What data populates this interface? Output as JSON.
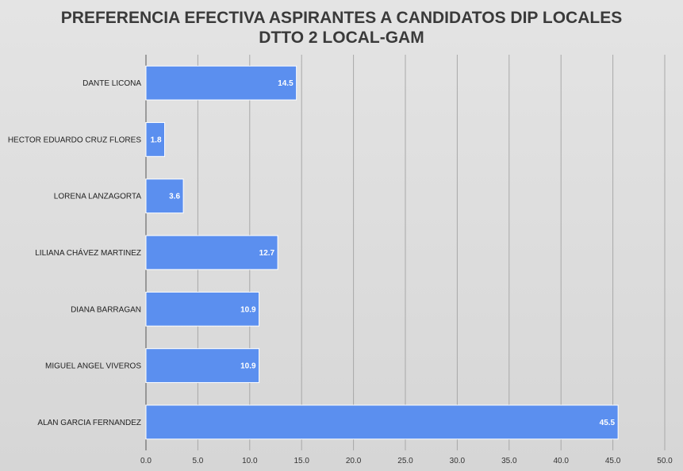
{
  "chart_data": {
    "type": "bar",
    "orientation": "horizontal",
    "title": [
      "PREFERENCIA EFECTIVA ASPIRANTES A CANDIDATOS DIP LOCALES",
      "DTTO 2 LOCAL-GAM"
    ],
    "categories": [
      "DANTE LICONA",
      "HECTOR EDUARDO CRUZ FLORES",
      "LORENA LANZAGORTA",
      "LILIANA CHÁVEZ MARTINEZ",
      "DIANA BARRAGAN",
      "MIGUEL ANGEL VIVEROS",
      "ALAN GARCIA FERNANDEZ"
    ],
    "values": [
      14.5,
      1.8,
      3.6,
      12.7,
      10.9,
      10.9,
      45.5
    ],
    "data_labels": [
      "14.5",
      "1.8",
      "3.6",
      "12.7",
      "10.9",
      "10.9",
      "45.5"
    ],
    "xlim": [
      0,
      50
    ],
    "x_ticks": [
      "0.0",
      "5.0",
      "10.0",
      "15.0",
      "20.0",
      "25.0",
      "30.0",
      "35.0",
      "40.0",
      "45.0",
      "50.0"
    ],
    "x_tick_values": [
      0,
      5,
      10,
      15,
      20,
      25,
      30,
      35,
      40,
      45,
      50
    ],
    "grid": "vertical",
    "bar_color": "#5b8fef",
    "bar_border_color": "#ffffff",
    "gridline_color": "#a8a8a8"
  }
}
